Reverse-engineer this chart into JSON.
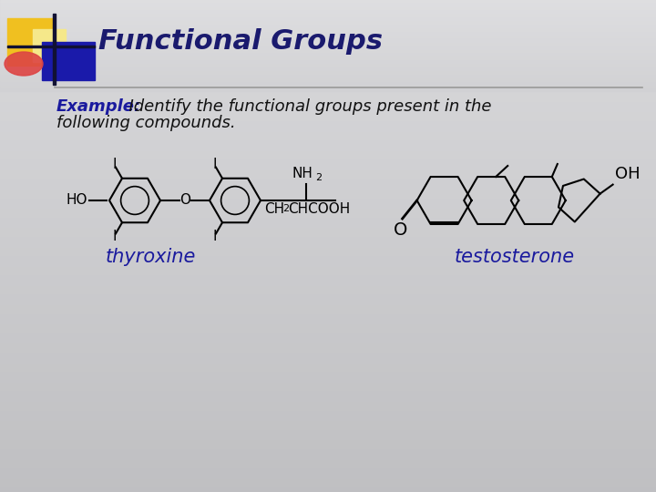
{
  "title": "Functional Groups",
  "example_bold": "Example:",
  "example_rest": "  Identify the functional groups present in the",
  "example_line2": "following compounds.",
  "label1": "thyroxine",
  "label2": "testosterone",
  "bg_color": "#b8bcc4",
  "title_color": "#1a1a6e",
  "text_color": "#1a1a6e",
  "label_color": "#1a1a9e",
  "title_fontsize": 22,
  "text_fontsize": 13,
  "label_fontsize": 15,
  "deco_yellow": "#f0c020",
  "deco_yellow_light": "#f0e090",
  "deco_blue": "#1a1aaa",
  "deco_red": "#dd4444",
  "sep_color": "#aaaaaa",
  "struct_color": "#000000"
}
